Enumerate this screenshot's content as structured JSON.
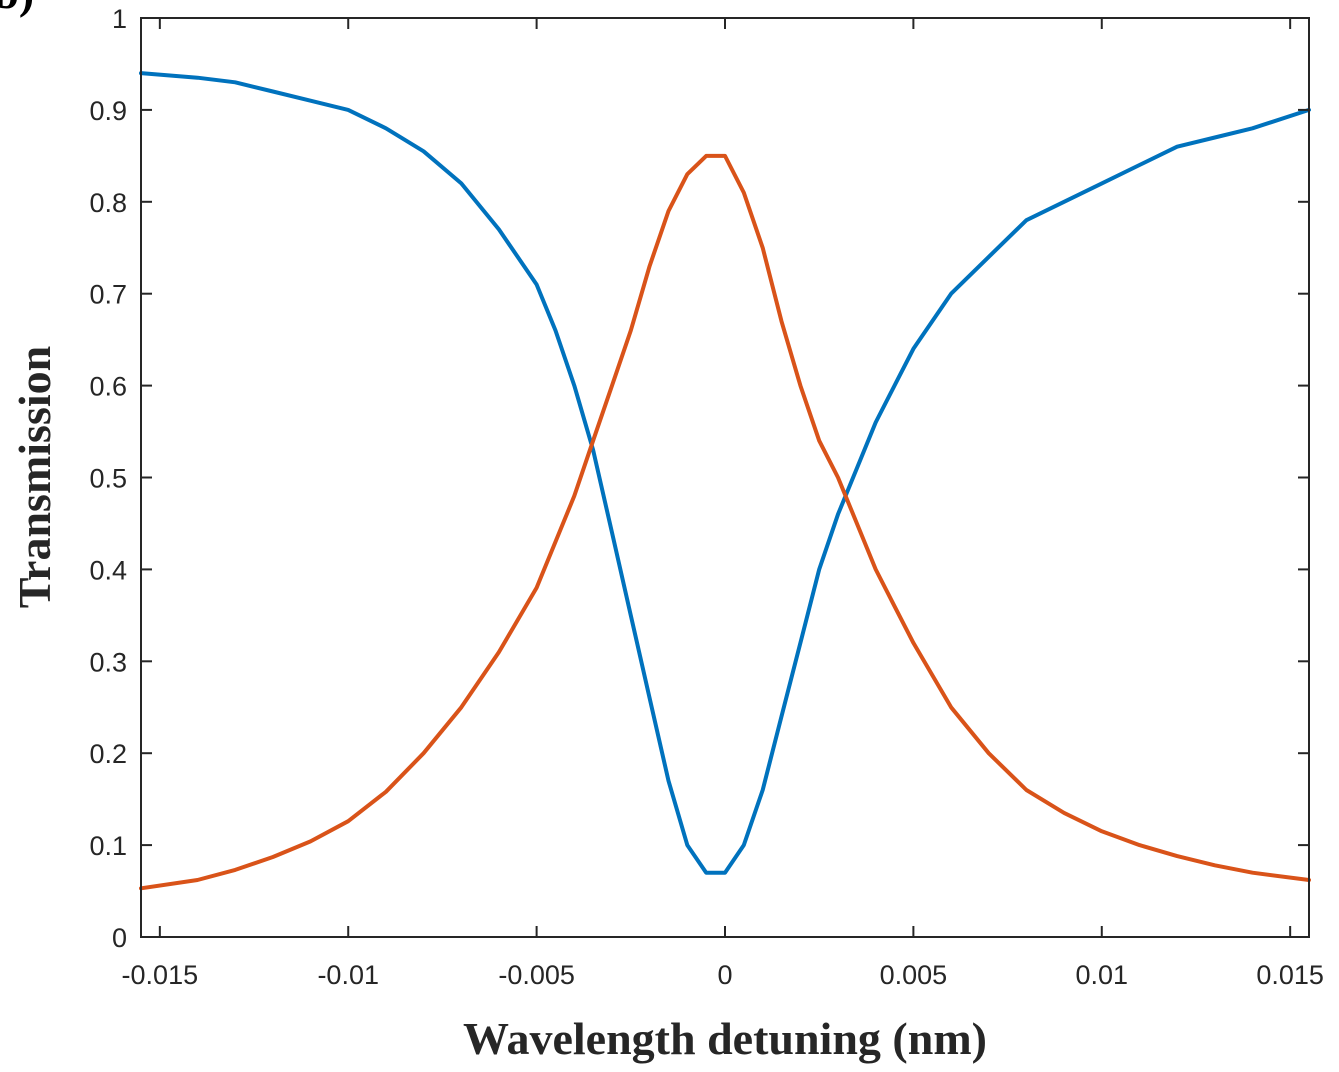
{
  "panel_label": "(b)",
  "chart_data": {
    "type": "line",
    "xlabel": "Wavelength detuning (nm)",
    "ylabel": "Transmission",
    "xlim": [
      -0.0155,
      0.0155
    ],
    "ylim": [
      0,
      1
    ],
    "x_ticks": [
      -0.015,
      -0.01,
      -0.005,
      0,
      0.005,
      0.01,
      0.015
    ],
    "x_tick_labels": [
      "-0.015",
      "-0.01",
      "-0.005",
      "0",
      "0.005",
      "0.01",
      "0.015"
    ],
    "y_ticks": [
      0,
      0.1,
      0.2,
      0.3,
      0.4,
      0.5,
      0.6,
      0.7,
      0.8,
      0.9,
      1
    ],
    "y_tick_labels": [
      "0",
      "0.1",
      "0.2",
      "0.3",
      "0.4",
      "0.5",
      "0.6",
      "0.7",
      "0.8",
      "0.9",
      "1"
    ],
    "grid": false,
    "box": true,
    "series": [
      {
        "color": "#0072BD",
        "x": [
          -0.0155,
          -0.014,
          -0.013,
          -0.012,
          -0.011,
          -0.01,
          -0.009,
          -0.008,
          -0.007,
          -0.006,
          -0.005,
          -0.0045,
          -0.004,
          -0.0035,
          -0.003,
          -0.0025,
          -0.002,
          -0.0015,
          -0.001,
          -0.0005,
          0,
          0.0005,
          0.001,
          0.0015,
          0.002,
          0.0025,
          0.003,
          0.0035,
          0.004,
          0.0045,
          0.005,
          0.006,
          0.007,
          0.008,
          0.009,
          0.01,
          0.011,
          0.012,
          0.013,
          0.014,
          0.0155
        ],
        "y": [
          0.94,
          0.935,
          0.93,
          0.92,
          0.91,
          0.9,
          0.88,
          0.855,
          0.82,
          0.77,
          0.71,
          0.66,
          0.6,
          0.53,
          0.44,
          0.35,
          0.26,
          0.17,
          0.1,
          0.07,
          0.07,
          0.1,
          0.16,
          0.24,
          0.32,
          0.4,
          0.46,
          0.51,
          0.56,
          0.6,
          0.64,
          0.7,
          0.74,
          0.78,
          0.8,
          0.82,
          0.84,
          0.86,
          0.87,
          0.88,
          0.9
        ]
      },
      {
        "color": "#D95319",
        "x": [
          -0.0155,
          -0.014,
          -0.013,
          -0.012,
          -0.011,
          -0.01,
          -0.009,
          -0.008,
          -0.007,
          -0.006,
          -0.005,
          -0.0045,
          -0.004,
          -0.0035,
          -0.003,
          -0.0025,
          -0.002,
          -0.0015,
          -0.001,
          -0.0005,
          0,
          0.0005,
          0.001,
          0.0015,
          0.002,
          0.0025,
          0.003,
          0.0035,
          0.004,
          0.0045,
          0.005,
          0.006,
          0.007,
          0.008,
          0.009,
          0.01,
          0.011,
          0.012,
          0.013,
          0.014,
          0.0155
        ],
        "y": [
          0.053,
          0.062,
          0.073,
          0.087,
          0.104,
          0.126,
          0.158,
          0.2,
          0.25,
          0.31,
          0.38,
          0.43,
          0.48,
          0.54,
          0.6,
          0.66,
          0.73,
          0.79,
          0.83,
          0.85,
          0.85,
          0.81,
          0.75,
          0.67,
          0.6,
          0.54,
          0.5,
          0.45,
          0.4,
          0.36,
          0.32,
          0.25,
          0.2,
          0.16,
          0.135,
          0.115,
          0.1,
          0.088,
          0.078,
          0.07,
          0.062
        ]
      }
    ]
  }
}
